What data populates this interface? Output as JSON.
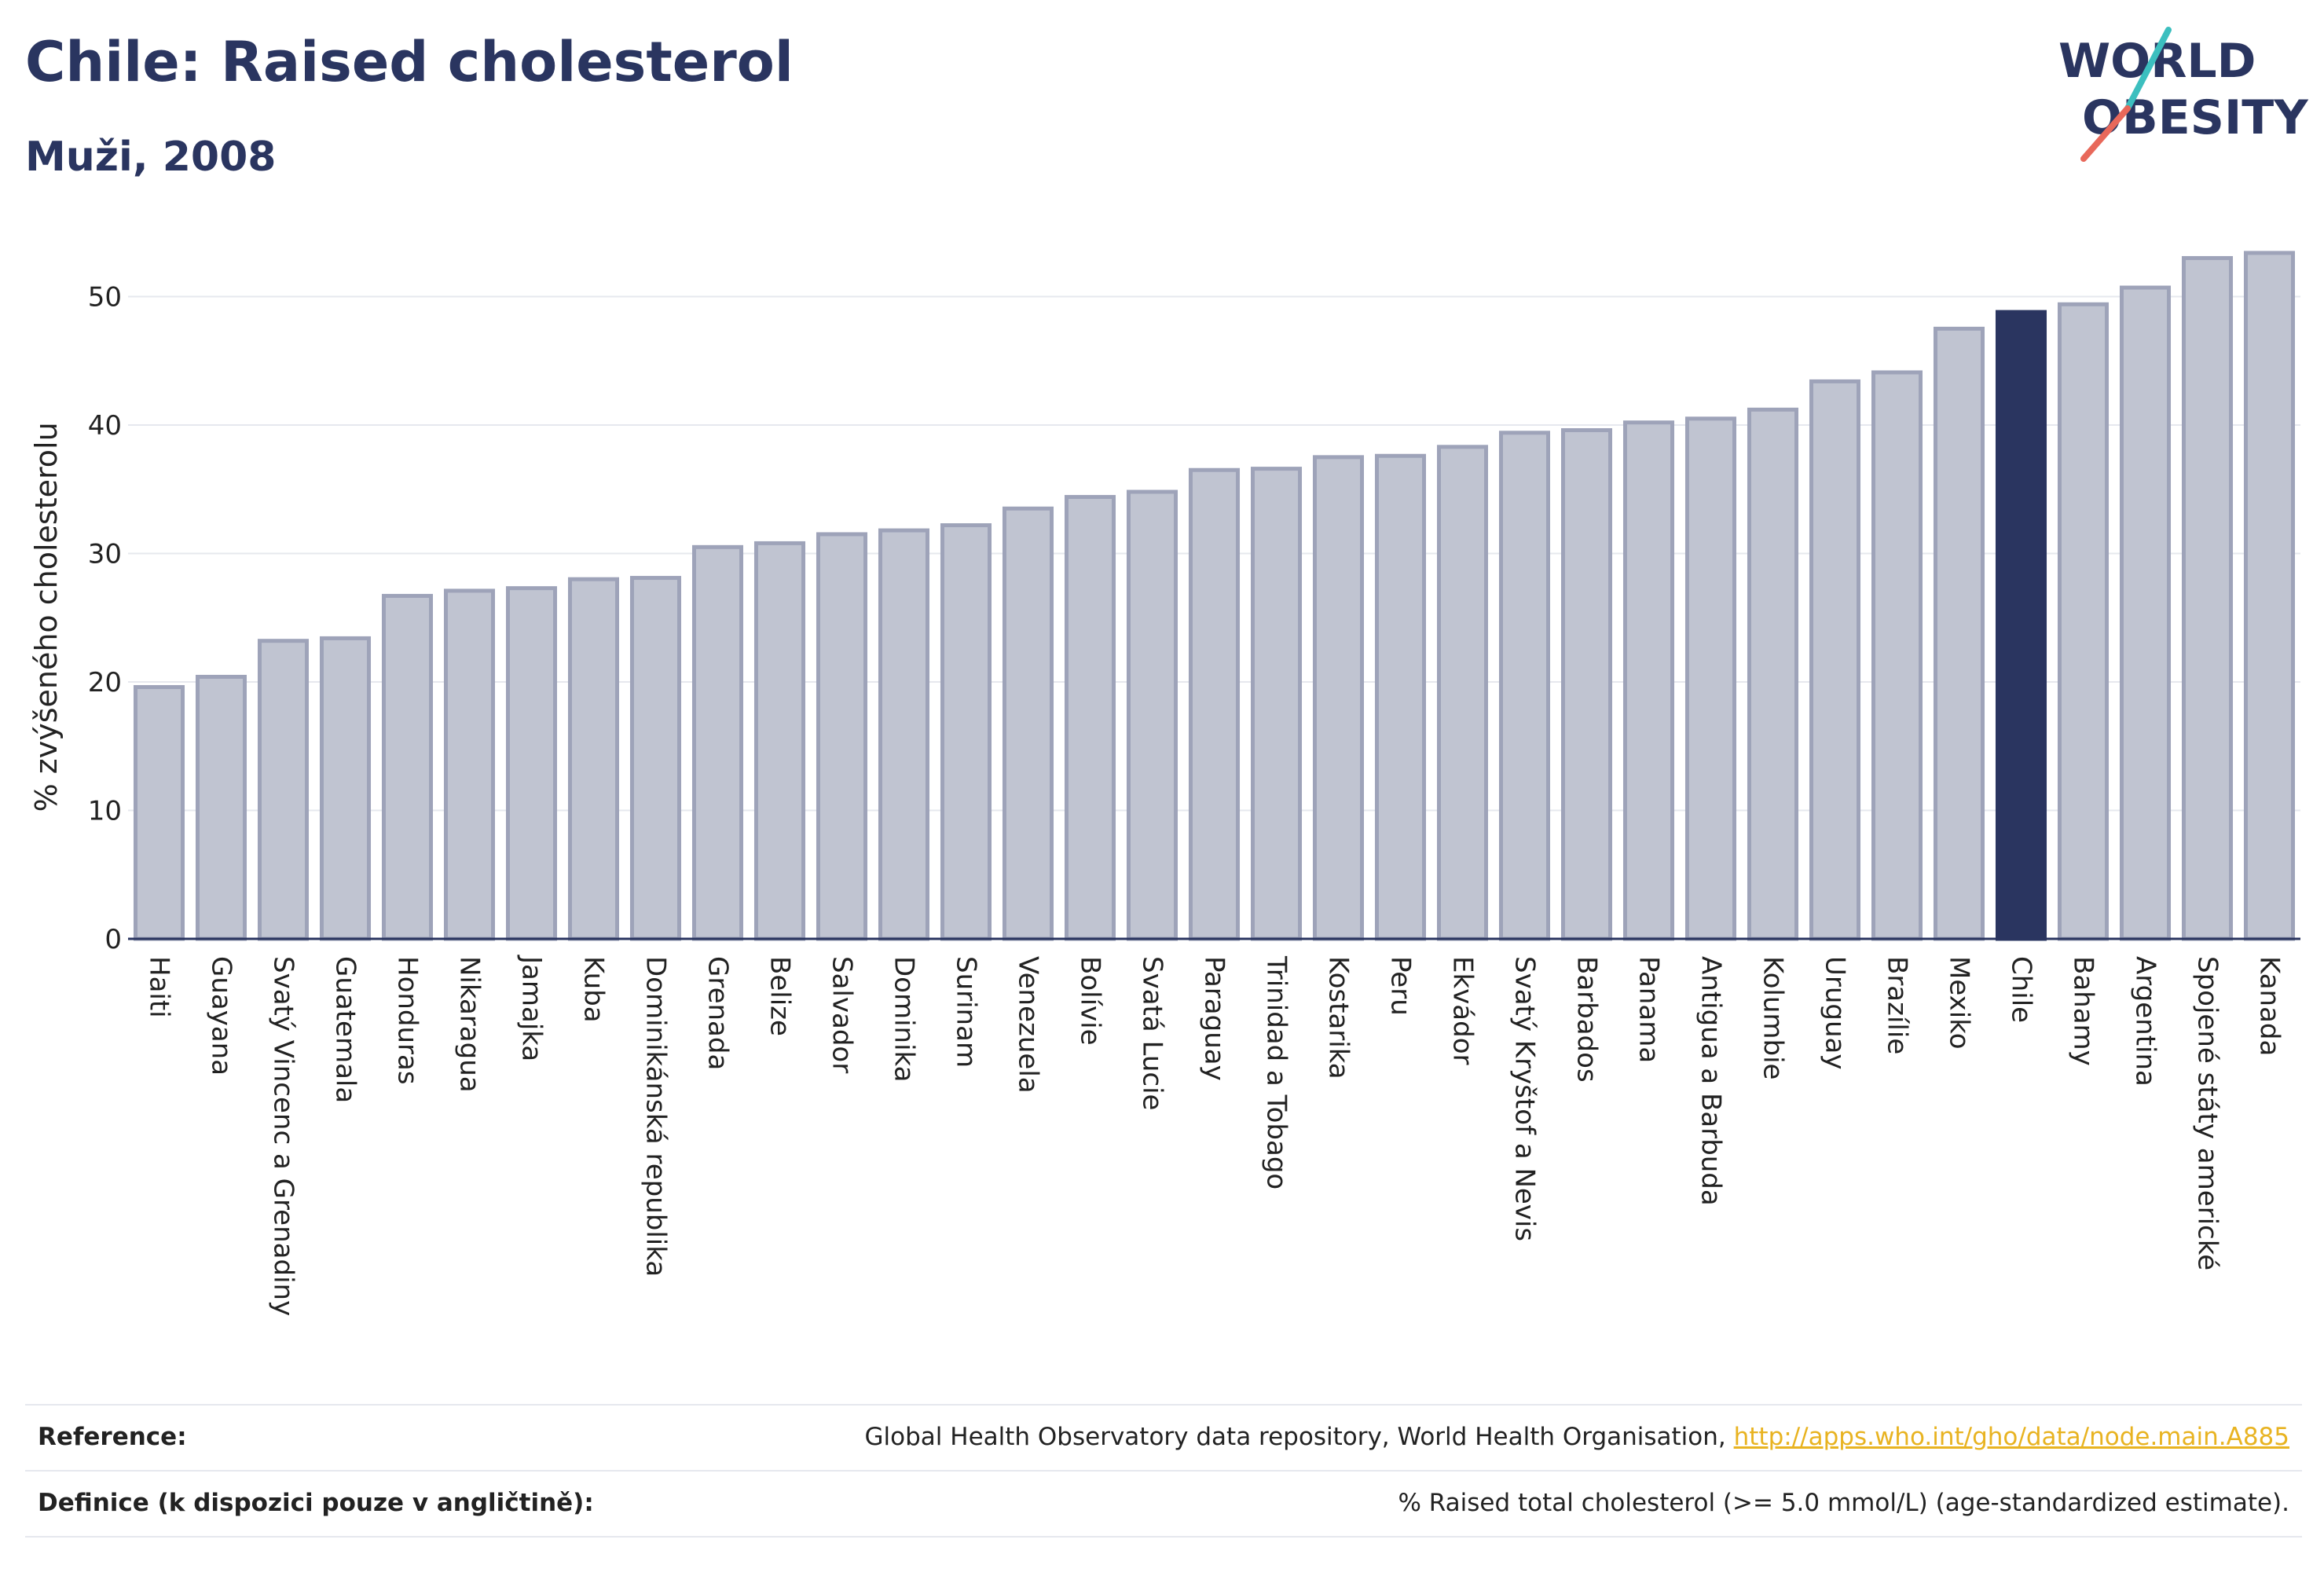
{
  "header": {
    "title": "Chile: Raised cholesterol",
    "subtitle": "Muži, 2008"
  },
  "logo": {
    "line1": "WORLD",
    "line2": "OBESITY",
    "colors": {
      "text": "#2a3560",
      "slash_teal": "#3cbfbf",
      "slash_coral": "#e8685a"
    }
  },
  "colors": {
    "bar_default": "#c0c4d1",
    "bar_border": "#9ea3b9",
    "bar_highlight": "#2a3560",
    "grid": "#e6e8ee",
    "axis": "#2a3560"
  },
  "chart_data": {
    "type": "bar",
    "ylabel": "% zvýšeného cholesterolu",
    "xlabel": "",
    "ylim": [
      0,
      55
    ],
    "yticks": [
      0,
      10,
      20,
      30,
      40,
      50
    ],
    "grid": true,
    "highlight": "Chile",
    "categories": [
      "Haiti",
      "Guayana",
      "Svatý Vincenc a Grenadiny",
      "Guatemala",
      "Honduras",
      "Nikaragua",
      "Jamajka",
      "Kuba",
      "Dominikánská republika",
      "Grenada",
      "Belize",
      "Salvador",
      "Dominika",
      "Surinam",
      "Venezuela",
      "Bolívie",
      "Svatá Lucie",
      "Paraguay",
      "Trinidad a Tobago",
      "Kostarika",
      "Peru",
      "Ekvádor",
      "Svatý Kryštof a Nevis",
      "Barbados",
      "Panama",
      "Antigua a Barbuda",
      "Kolumbie",
      "Uruguay",
      "Brazílie",
      "Mexiko",
      "Chile",
      "Bahamy",
      "Argentina",
      "Spojené státy americké",
      "Kanada"
    ],
    "values": [
      19.6,
      20.4,
      23.2,
      23.4,
      26.7,
      27.1,
      27.3,
      28.0,
      28.1,
      30.5,
      30.8,
      31.5,
      31.8,
      32.2,
      33.5,
      34.4,
      34.8,
      36.5,
      36.6,
      37.5,
      37.6,
      38.3,
      39.4,
      39.6,
      40.2,
      40.5,
      41.2,
      43.4,
      44.1,
      47.5,
      48.8,
      49.4,
      50.7,
      53.0,
      53.4
    ]
  },
  "footer": {
    "reference_label": "Reference:",
    "reference_text": "Global Health Observatory data repository, World Health Organisation, ",
    "reference_link": "http://apps.who.int/gho/data/node.main.A885",
    "definition_label": "Definice (k dispozici pouze v angličtině):",
    "definition_text": "% Raised total cholesterol (>= 5.0 mmol/L) (age-standardized estimate)."
  }
}
